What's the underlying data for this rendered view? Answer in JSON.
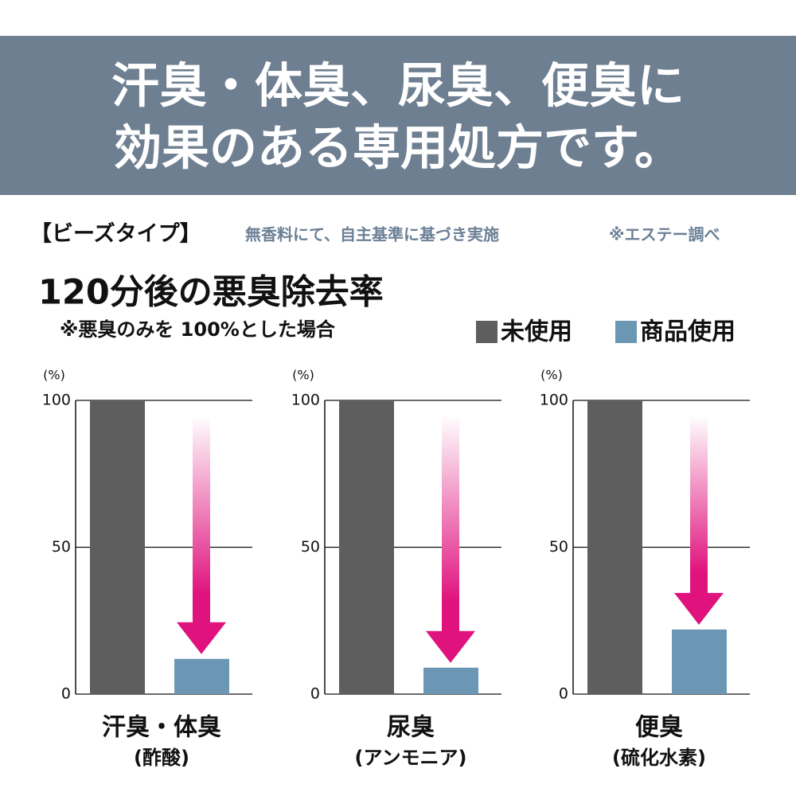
{
  "header": {
    "title_lines": [
      "汗臭・体臭、尿臭、便臭に",
      "効果のある専用処方です。"
    ]
  },
  "product_type": "【ビーズタイプ】",
  "note": "無香料にて、自主基準に基づき実施",
  "source": "※エステー調べ",
  "chart_title": "120分後の悪臭除去率",
  "chart_subtitle": "※悪臭のみを 100%とした場合",
  "legend": [
    {
      "name": "未使用",
      "color": "#5f5e5f"
    },
    {
      "name": "商品使用",
      "color": "#6b97b5"
    }
  ],
  "chart_data": [
    {
      "type": "bar",
      "title": "汗臭・体臭",
      "subtitle": "(酢酸)",
      "y_unit": "(%)",
      "categories": [
        null,
        null
      ],
      "values": [
        100,
        12
      ],
      "ylim": [
        0,
        100
      ],
      "yticks": [
        0,
        50,
        100
      ],
      "grid": true
    },
    {
      "type": "bar",
      "title": "尿臭",
      "subtitle": "(アンモニア)",
      "y_unit": "(%)",
      "categories": [
        null,
        null
      ],
      "values": [
        100,
        9
      ],
      "ylim": [
        0,
        100
      ],
      "yticks": [
        0,
        50,
        100
      ],
      "grid": true
    },
    {
      "type": "bar",
      "title": "便臭",
      "subtitle": "(硫化水素)",
      "y_unit": "(%)",
      "categories": [
        null,
        null
      ],
      "values": [
        100,
        22
      ],
      "ylim": [
        0,
        100
      ],
      "yticks": [
        0,
        50,
        100
      ],
      "grid": true
    }
  ]
}
